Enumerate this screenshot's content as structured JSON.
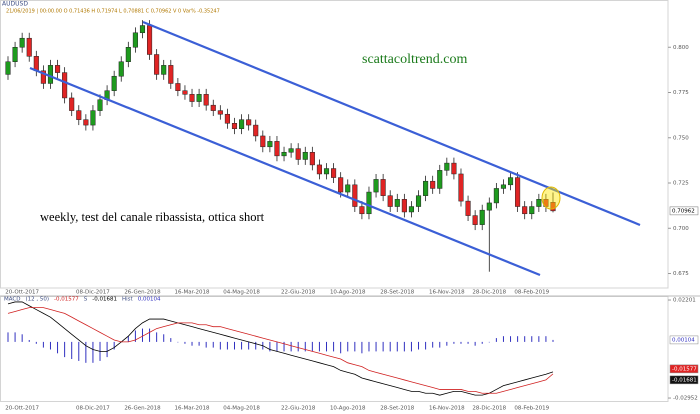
{
  "header": {
    "symbol": "AUDUSD",
    "info": "21/06/2019 | 00:00.00   O 0,71436   H 0,71974   L 0,70881   C 0,70962   V 0   Var% -0,35247"
  },
  "chart_data": [
    {
      "type": "candlestick",
      "annotations": [
        "scattacoltrend.com",
        "weekly, test del canale ribassista, ottica short"
      ],
      "categories": [
        null,
        null,
        "20-Ott-2017",
        null,
        null,
        null,
        null,
        null,
        null,
        null,
        null,
        null,
        "08-Dic-2017",
        null,
        null,
        null,
        null,
        null,
        null,
        "26-Gen-2018",
        null,
        null,
        null,
        null,
        null,
        null,
        "16-Mar-2018",
        null,
        null,
        null,
        null,
        null,
        null,
        "04-Mag-2018",
        null,
        null,
        null,
        null,
        null,
        null,
        null,
        "22-Giu-2018",
        null,
        null,
        null,
        null,
        null,
        null,
        "10-Ago-2018",
        null,
        null,
        null,
        null,
        null,
        null,
        "28-Set-2018",
        null,
        null,
        null,
        null,
        null,
        null,
        "16-Nov-2018",
        null,
        null,
        null,
        null,
        null,
        "28-Dic-2018",
        null,
        null,
        null,
        null,
        null,
        "08-Feb-2019",
        null,
        null,
        null
      ],
      "open": [
        0.785,
        0.792,
        0.8,
        0.805,
        0.795,
        0.787,
        0.78,
        0.79,
        0.786,
        0.772,
        0.765,
        0.76,
        0.757,
        0.765,
        0.771,
        0.776,
        0.784,
        0.792,
        0.8,
        0.808,
        0.812,
        0.796,
        0.785,
        0.79,
        0.78,
        0.776,
        0.774,
        0.77,
        0.774,
        0.768,
        0.765,
        0.763,
        0.758,
        0.755,
        0.76,
        0.757,
        0.751,
        0.745,
        0.748,
        0.74,
        0.742,
        0.744,
        0.738,
        0.742,
        0.735,
        0.73,
        0.733,
        0.728,
        0.72,
        0.724,
        0.712,
        0.708,
        0.72,
        0.727,
        0.718,
        0.712,
        0.716,
        0.709,
        0.712,
        0.718,
        0.726,
        0.722,
        0.732,
        0.736,
        0.73,
        0.715,
        0.707,
        0.702,
        0.71,
        0.714,
        0.722,
        0.724,
        0.728,
        0.712,
        0.708,
        0.712,
        0.716,
        0.71436
      ],
      "high": [
        0.795,
        0.803,
        0.808,
        0.808,
        0.798,
        0.79,
        0.793,
        0.793,
        0.789,
        0.775,
        0.768,
        0.763,
        0.768,
        0.774,
        0.779,
        0.787,
        0.795,
        0.803,
        0.811,
        0.815,
        0.815,
        0.799,
        0.793,
        0.793,
        0.783,
        0.779,
        0.777,
        0.777,
        0.777,
        0.771,
        0.768,
        0.766,
        0.761,
        0.763,
        0.763,
        0.76,
        0.754,
        0.751,
        0.751,
        0.745,
        0.747,
        0.747,
        0.745,
        0.745,
        0.738,
        0.736,
        0.736,
        0.731,
        0.727,
        0.727,
        0.715,
        0.723,
        0.73,
        0.73,
        0.721,
        0.719,
        0.719,
        0.715,
        0.721,
        0.729,
        0.729,
        0.735,
        0.739,
        0.739,
        0.733,
        0.718,
        0.71,
        0.713,
        0.717,
        0.725,
        0.727,
        0.731,
        0.731,
        0.715,
        0.715,
        0.719,
        0.719,
        0.71974
      ],
      "low": [
        0.782,
        0.789,
        0.797,
        0.792,
        0.784,
        0.777,
        0.777,
        0.783,
        0.769,
        0.762,
        0.757,
        0.754,
        0.754,
        0.762,
        0.768,
        0.773,
        0.781,
        0.789,
        0.797,
        0.805,
        0.793,
        0.782,
        0.782,
        0.777,
        0.773,
        0.771,
        0.767,
        0.767,
        0.765,
        0.762,
        0.76,
        0.755,
        0.752,
        0.752,
        0.754,
        0.748,
        0.742,
        0.742,
        0.737,
        0.737,
        0.739,
        0.735,
        0.735,
        0.732,
        0.727,
        0.727,
        0.725,
        0.717,
        0.717,
        0.709,
        0.705,
        0.705,
        0.717,
        0.715,
        0.709,
        0.709,
        0.706,
        0.706,
        0.709,
        0.715,
        0.719,
        0.719,
        0.729,
        0.727,
        0.712,
        0.704,
        0.699,
        0.699,
        0.676,
        0.711,
        0.719,
        0.721,
        0.709,
        0.705,
        0.705,
        0.709,
        0.709,
        0.70881
      ],
      "close": [
        0.792,
        0.8,
        0.805,
        0.795,
        0.787,
        0.78,
        0.79,
        0.786,
        0.772,
        0.765,
        0.76,
        0.757,
        0.765,
        0.771,
        0.776,
        0.784,
        0.792,
        0.8,
        0.808,
        0.812,
        0.796,
        0.785,
        0.79,
        0.78,
        0.776,
        0.774,
        0.77,
        0.774,
        0.768,
        0.765,
        0.763,
        0.758,
        0.755,
        0.76,
        0.757,
        0.751,
        0.745,
        0.748,
        0.74,
        0.742,
        0.744,
        0.738,
        0.742,
        0.735,
        0.73,
        0.733,
        0.728,
        0.72,
        0.724,
        0.712,
        0.708,
        0.72,
        0.727,
        0.718,
        0.712,
        0.716,
        0.709,
        0.712,
        0.718,
        0.726,
        0.722,
        0.732,
        0.736,
        0.73,
        0.715,
        0.707,
        0.702,
        0.71,
        0.714,
        0.722,
        0.724,
        0.728,
        0.712,
        0.708,
        0.712,
        0.716,
        0.712,
        0.70962
      ],
      "up_color": "#1e9a1e",
      "down_color": "#e02424",
      "ylim": [
        0.667,
        0.825
      ],
      "yticks": [
        {
          "value": 0.8,
          "label": "0.800"
        },
        {
          "value": 0.775,
          "label": "0.775"
        },
        {
          "value": 0.75,
          "label": "0.750"
        },
        {
          "value": 0.725,
          "label": "0.725"
        },
        {
          "value": 0.7,
          "label": "0.700"
        },
        {
          "value": 0.675,
          "label": "0.675"
        }
      ]
    },
    {
      "type": "macd",
      "title": "MACD",
      "ylim": [
        -0.0316,
        0.0236
      ],
      "yticks": [
        0.02201,
        -0.02952
      ],
      "series": [
        {
          "name": "(12 , 50)",
          "color": "#000000",
          "last_label": "-0,01577",
          "values": [
            0.02,
            0.021,
            0.021,
            0.019,
            0.017,
            0.015,
            0.013,
            0.01,
            0.007,
            0.004,
            0.001,
            -0.002,
            -0.004,
            -0.005,
            -0.005,
            -0.003,
            0.0,
            0.003,
            0.007,
            0.01,
            0.012,
            0.012,
            0.012,
            0.011,
            0.01,
            0.009,
            0.008,
            0.007,
            0.006,
            0.005,
            0.004,
            0.003,
            0.002,
            0.001,
            0.0,
            -0.001,
            -0.002,
            -0.004,
            -0.005,
            -0.006,
            -0.007,
            -0.008,
            -0.009,
            -0.01,
            -0.011,
            -0.012,
            -0.013,
            -0.015,
            -0.016,
            -0.017,
            -0.019,
            -0.02,
            -0.021,
            -0.022,
            -0.023,
            -0.024,
            -0.025,
            -0.026,
            -0.026,
            -0.027,
            -0.027,
            -0.028,
            -0.027,
            -0.026,
            -0.026,
            -0.027,
            -0.028,
            -0.028,
            -0.027,
            -0.025,
            -0.023,
            -0.022,
            -0.021,
            -0.02,
            -0.019,
            -0.018,
            -0.017,
            -0.01577
          ]
        },
        {
          "name": "S",
          "color": "#d02020",
          "last_label": "-0,01681",
          "values": [
            0.015,
            0.016,
            0.017,
            0.018,
            0.018,
            0.018,
            0.017,
            0.016,
            0.015,
            0.013,
            0.011,
            0.009,
            0.007,
            0.005,
            0.003,
            0.001,
            0.0,
            0.0,
            0.001,
            0.003,
            0.005,
            0.007,
            0.008,
            0.009,
            0.01,
            0.01,
            0.01,
            0.009,
            0.009,
            0.008,
            0.008,
            0.007,
            0.006,
            0.005,
            0.004,
            0.003,
            0.002,
            0.001,
            0.0,
            -0.001,
            -0.002,
            -0.003,
            -0.004,
            -0.005,
            -0.006,
            -0.007,
            -0.008,
            -0.009,
            -0.011,
            -0.012,
            -0.013,
            -0.015,
            -0.016,
            -0.017,
            -0.018,
            -0.019,
            -0.02,
            -0.021,
            -0.022,
            -0.023,
            -0.024,
            -0.025,
            -0.025,
            -0.025,
            -0.025,
            -0.026,
            -0.026,
            -0.027,
            -0.027,
            -0.027,
            -0.026,
            -0.025,
            -0.024,
            -0.023,
            -0.022,
            -0.021,
            -0.02,
            -0.01681
          ]
        },
        {
          "name": "Hist",
          "color": "#3030c0",
          "last_label": "0,00104",
          "values": [
            0.005,
            0.005,
            0.004,
            0.001,
            -0.001,
            -0.003,
            -0.004,
            -0.006,
            -0.008,
            -0.009,
            -0.01,
            -0.011,
            -0.011,
            -0.01,
            -0.008,
            -0.004,
            0.0,
            0.003,
            0.006,
            0.007,
            0.007,
            0.005,
            0.004,
            0.002,
            0.0,
            -0.001,
            -0.002,
            -0.002,
            -0.003,
            -0.003,
            -0.004,
            -0.004,
            -0.004,
            -0.004,
            -0.004,
            -0.004,
            -0.004,
            -0.005,
            -0.005,
            -0.005,
            -0.005,
            -0.005,
            -0.005,
            -0.005,
            -0.005,
            -0.005,
            -0.005,
            -0.006,
            -0.005,
            -0.005,
            -0.006,
            -0.005,
            -0.005,
            -0.005,
            -0.005,
            -0.005,
            -0.005,
            -0.005,
            -0.004,
            -0.004,
            -0.003,
            -0.003,
            -0.002,
            -0.001,
            -0.001,
            -0.001,
            -0.002,
            -0.001,
            0.0,
            0.002,
            0.003,
            0.003,
            0.003,
            0.003,
            0.003,
            0.003,
            0.003,
            0.00104
          ]
        }
      ]
    }
  ]
}
